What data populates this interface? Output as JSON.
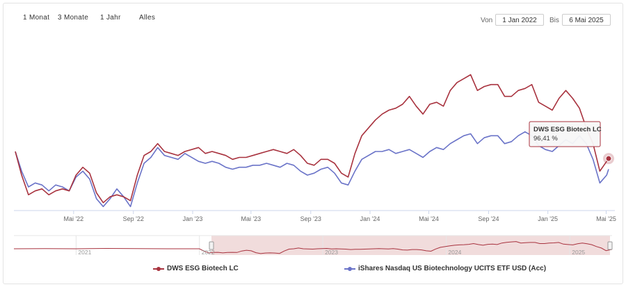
{
  "range_selector": {
    "buttons": [
      "1 Monat",
      "3 Monate",
      "1 Jahr",
      "Alles"
    ],
    "from_label": "Von",
    "from_value": "1 Jan 2022",
    "to_label": "Bis",
    "to_value": "6 Mai 2025"
  },
  "tooltip": {
    "series": "DWS ESG Biotech LC",
    "value": "96,41 %"
  },
  "navigator": {
    "year_labels": [
      "2021",
      "2022",
      "2023",
      "2024",
      "2025"
    ]
  },
  "colors": {
    "series1": "#a8323e",
    "series2": "#6a73c8",
    "navigator_fill": "#f1dcdc"
  },
  "chart_data": {
    "type": "line",
    "x_tick_labels": [
      "Mai '22",
      "Sep '22",
      "Jan '23",
      "Mai '23",
      "Sep '23",
      "Jan '24",
      "Mai '24",
      "Sep '24",
      "Jan '25",
      "Mai '25"
    ],
    "x_range": [
      "2022-01-01",
      "2025-05-06"
    ],
    "y_range": [
      70,
      160
    ],
    "series": [
      {
        "name": "DWS ESG Biotech LC",
        "color": "#a8323e",
        "points": [
          [
            "2022-01-01",
            100
          ],
          [
            "2022-01-14",
            88
          ],
          [
            "2022-01-28",
            78
          ],
          [
            "2022-02-11",
            80
          ],
          [
            "2022-02-25",
            81
          ],
          [
            "2022-03-11",
            78
          ],
          [
            "2022-03-25",
            80
          ],
          [
            "2022-04-08",
            81
          ],
          [
            "2022-04-22",
            80
          ],
          [
            "2022-05-06",
            88
          ],
          [
            "2022-05-20",
            92
          ],
          [
            "2022-06-03",
            89
          ],
          [
            "2022-06-17",
            79
          ],
          [
            "2022-07-01",
            74
          ],
          [
            "2022-07-15",
            77
          ],
          [
            "2022-07-29",
            78
          ],
          [
            "2022-08-12",
            77
          ],
          [
            "2022-08-26",
            75
          ],
          [
            "2022-09-09",
            88
          ],
          [
            "2022-09-23",
            98
          ],
          [
            "2022-10-07",
            100
          ],
          [
            "2022-10-21",
            104
          ],
          [
            "2022-11-04",
            100
          ],
          [
            "2022-11-18",
            99
          ],
          [
            "2022-12-02",
            98
          ],
          [
            "2022-12-16",
            100
          ],
          [
            "2023-01-13",
            102
          ],
          [
            "2023-01-27",
            99
          ],
          [
            "2023-02-10",
            100
          ],
          [
            "2023-02-24",
            99
          ],
          [
            "2023-03-10",
            98
          ],
          [
            "2023-03-24",
            96
          ],
          [
            "2023-04-07",
            97
          ],
          [
            "2023-04-21",
            97
          ],
          [
            "2023-05-05",
            98
          ],
          [
            "2023-05-19",
            99
          ],
          [
            "2023-06-02",
            100
          ],
          [
            "2023-06-16",
            101
          ],
          [
            "2023-06-30",
            100
          ],
          [
            "2023-07-14",
            99
          ],
          [
            "2023-07-28",
            101
          ],
          [
            "2023-08-11",
            98
          ],
          [
            "2023-08-25",
            94
          ],
          [
            "2023-09-08",
            93
          ],
          [
            "2023-09-22",
            96
          ],
          [
            "2023-10-06",
            96
          ],
          [
            "2023-10-20",
            94
          ],
          [
            "2023-11-03",
            89
          ],
          [
            "2023-11-17",
            87
          ],
          [
            "2023-12-01",
            99
          ],
          [
            "2023-12-15",
            108
          ],
          [
            "2024-01-12",
            116
          ],
          [
            "2024-01-26",
            119
          ],
          [
            "2024-02-09",
            121
          ],
          [
            "2024-02-23",
            122
          ],
          [
            "2024-03-08",
            124
          ],
          [
            "2024-03-22",
            128
          ],
          [
            "2024-04-05",
            123
          ],
          [
            "2024-04-19",
            119
          ],
          [
            "2024-05-03",
            124
          ],
          [
            "2024-05-17",
            125
          ],
          [
            "2024-05-31",
            123
          ],
          [
            "2024-06-14",
            131
          ],
          [
            "2024-06-28",
            135
          ],
          [
            "2024-07-12",
            137
          ],
          [
            "2024-07-26",
            139
          ],
          [
            "2024-08-09",
            131
          ],
          [
            "2024-08-23",
            133
          ],
          [
            "2024-09-06",
            134
          ],
          [
            "2024-09-20",
            134
          ],
          [
            "2024-10-04",
            128
          ],
          [
            "2024-10-18",
            128
          ],
          [
            "2024-11-01",
            131
          ],
          [
            "2024-11-15",
            132
          ],
          [
            "2024-11-29",
            134
          ],
          [
            "2024-12-13",
            125
          ],
          [
            "2024-12-27",
            123
          ],
          [
            "2025-01-10",
            121
          ],
          [
            "2025-01-24",
            127
          ],
          [
            "2025-02-07",
            131
          ],
          [
            "2025-02-21",
            127
          ],
          [
            "2025-03-07",
            122
          ],
          [
            "2025-03-21",
            112
          ],
          [
            "2025-04-04",
            104
          ],
          [
            "2025-04-18",
            90
          ],
          [
            "2025-05-02",
            95
          ],
          [
            "2025-05-06",
            96.41
          ]
        ]
      },
      {
        "name": "iShares Nasdaq US Biotechnology UCITS ETF USD (Acc)",
        "color": "#6a73c8",
        "points": [
          [
            "2022-01-01",
            100
          ],
          [
            "2022-01-14",
            90
          ],
          [
            "2022-01-28",
            82
          ],
          [
            "2022-02-11",
            84
          ],
          [
            "2022-02-25",
            83
          ],
          [
            "2022-03-11",
            80
          ],
          [
            "2022-03-25",
            83
          ],
          [
            "2022-04-08",
            82
          ],
          [
            "2022-04-22",
            80
          ],
          [
            "2022-05-06",
            87
          ],
          [
            "2022-05-20",
            90
          ],
          [
            "2022-06-03",
            86
          ],
          [
            "2022-06-17",
            76
          ],
          [
            "2022-07-01",
            72
          ],
          [
            "2022-07-15",
            76
          ],
          [
            "2022-07-29",
            81
          ],
          [
            "2022-08-12",
            77
          ],
          [
            "2022-08-26",
            72
          ],
          [
            "2022-09-09",
            84
          ],
          [
            "2022-09-23",
            94
          ],
          [
            "2022-10-07",
            97
          ],
          [
            "2022-10-21",
            102
          ],
          [
            "2022-11-04",
            98
          ],
          [
            "2022-11-18",
            97
          ],
          [
            "2022-12-02",
            96
          ],
          [
            "2022-12-16",
            99
          ],
          [
            "2023-01-13",
            95
          ],
          [
            "2023-01-27",
            94
          ],
          [
            "2023-02-10",
            95
          ],
          [
            "2023-02-24",
            94
          ],
          [
            "2023-03-10",
            92
          ],
          [
            "2023-03-24",
            91
          ],
          [
            "2023-04-07",
            92
          ],
          [
            "2023-04-21",
            92
          ],
          [
            "2023-05-05",
            93
          ],
          [
            "2023-05-19",
            93
          ],
          [
            "2023-06-02",
            94
          ],
          [
            "2023-06-16",
            93
          ],
          [
            "2023-06-30",
            92
          ],
          [
            "2023-07-14",
            94
          ],
          [
            "2023-07-28",
            93
          ],
          [
            "2023-08-11",
            90
          ],
          [
            "2023-08-25",
            88
          ],
          [
            "2023-09-08",
            89
          ],
          [
            "2023-09-22",
            91
          ],
          [
            "2023-10-06",
            92
          ],
          [
            "2023-10-20",
            89
          ],
          [
            "2023-11-03",
            84
          ],
          [
            "2023-11-17",
            83
          ],
          [
            "2023-12-01",
            90
          ],
          [
            "2023-12-15",
            96
          ],
          [
            "2024-01-12",
            100
          ],
          [
            "2024-01-26",
            100
          ],
          [
            "2024-02-09",
            101
          ],
          [
            "2024-02-23",
            99
          ],
          [
            "2024-03-08",
            100
          ],
          [
            "2024-03-22",
            101
          ],
          [
            "2024-04-05",
            99
          ],
          [
            "2024-04-19",
            97
          ],
          [
            "2024-05-03",
            100
          ],
          [
            "2024-05-17",
            102
          ],
          [
            "2024-05-31",
            101
          ],
          [
            "2024-06-14",
            104
          ],
          [
            "2024-06-28",
            106
          ],
          [
            "2024-07-12",
            108
          ],
          [
            "2024-07-26",
            109
          ],
          [
            "2024-08-09",
            104
          ],
          [
            "2024-08-23",
            107
          ],
          [
            "2024-09-06",
            108
          ],
          [
            "2024-09-20",
            108
          ],
          [
            "2024-10-04",
            104
          ],
          [
            "2024-10-18",
            105
          ],
          [
            "2024-11-01",
            108
          ],
          [
            "2024-11-15",
            110
          ],
          [
            "2024-11-29",
            108
          ],
          [
            "2024-12-13",
            103
          ],
          [
            "2024-12-27",
            101
          ],
          [
            "2025-01-10",
            100
          ],
          [
            "2025-01-24",
            103
          ],
          [
            "2025-02-07",
            106
          ],
          [
            "2025-02-21",
            104
          ],
          [
            "2025-03-07",
            108
          ],
          [
            "2025-03-21",
            104
          ],
          [
            "2025-04-04",
            96
          ],
          [
            "2025-04-18",
            84
          ],
          [
            "2025-05-02",
            88
          ],
          [
            "2025-05-06",
            91
          ]
        ]
      }
    ]
  }
}
